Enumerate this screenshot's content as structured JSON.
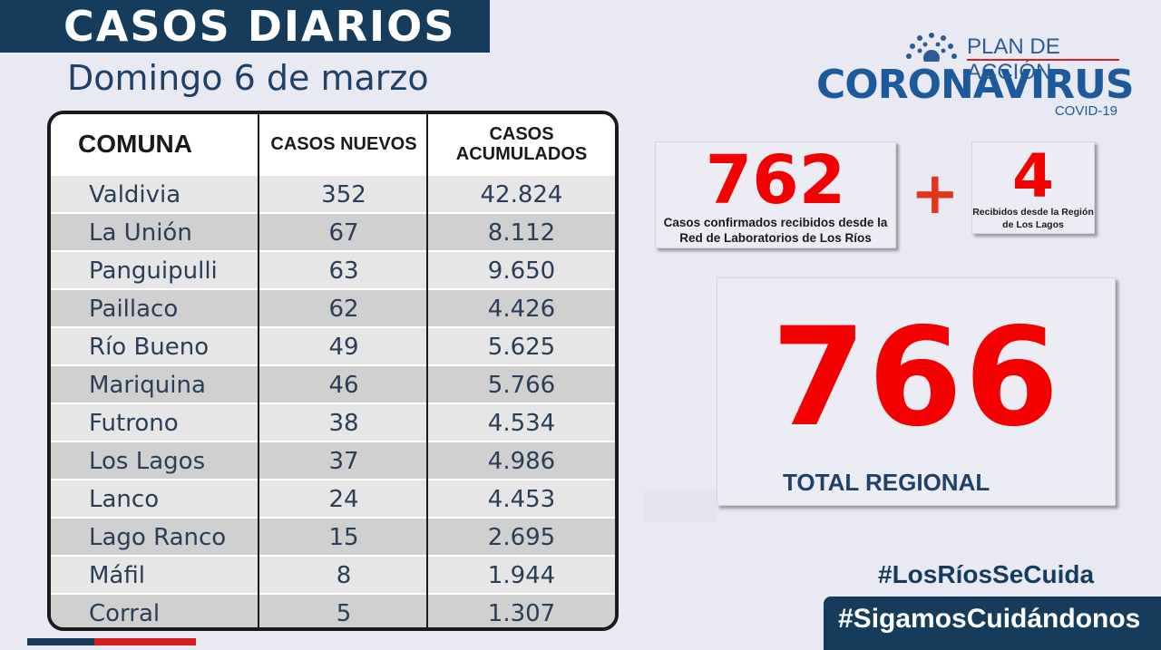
{
  "header": {
    "title": "CASOS DIARIOS",
    "date": "Domingo 6 de marzo"
  },
  "table": {
    "columns": [
      "COMUNA",
      "CASOS NUEVOS",
      "CASOS\nACUMULADOS"
    ],
    "rows": [
      {
        "comuna": "Valdivia",
        "nuevos": "352",
        "acumulados": "42.824"
      },
      {
        "comuna": "La Unión",
        "nuevos": "67",
        "acumulados": "8.112"
      },
      {
        "comuna": "Panguipulli",
        "nuevos": "63",
        "acumulados": "9.650"
      },
      {
        "comuna": "Paillaco",
        "nuevos": "62",
        "acumulados": "4.426"
      },
      {
        "comuna": "Río Bueno",
        "nuevos": "49",
        "acumulados": "5.625"
      },
      {
        "comuna": "Mariquina",
        "nuevos": "46",
        "acumulados": "5.766"
      },
      {
        "comuna": "Futrono",
        "nuevos": "38",
        "acumulados": "4.534"
      },
      {
        "comuna": "Los Lagos",
        "nuevos": "37",
        "acumulados": "4.986"
      },
      {
        "comuna": "Lanco",
        "nuevos": "24",
        "acumulados": "4.453"
      },
      {
        "comuna": "Lago Ranco",
        "nuevos": "15",
        "acumulados": "2.695"
      },
      {
        "comuna": "Máfil",
        "nuevos": "8",
        "acumulados": "1.944"
      },
      {
        "comuna": "Corral",
        "nuevos": "5",
        "acumulados": "1.307"
      }
    ]
  },
  "logo": {
    "plan": "PLAN DE ACCIÓN",
    "main": "CORONAVIRUS",
    "covid": "COVID-19"
  },
  "summary": {
    "local_count": "762",
    "local_caption": "Casos confirmados recibidos desde la Red de Laboratorios de Los Ríos",
    "plus": "+",
    "external_count": "4",
    "external_caption": "Recibidos  desde la Región de Los Lagos",
    "total": "766",
    "total_label": "TOTAL REGIONAL"
  },
  "hashtags": {
    "first": "#LosRíosSeCuida",
    "second": "#SigamosCuidándonos"
  },
  "colors": {
    "navy": "#163c5c",
    "red": "#f40000",
    "brand_blue": "#1d5a9c"
  }
}
